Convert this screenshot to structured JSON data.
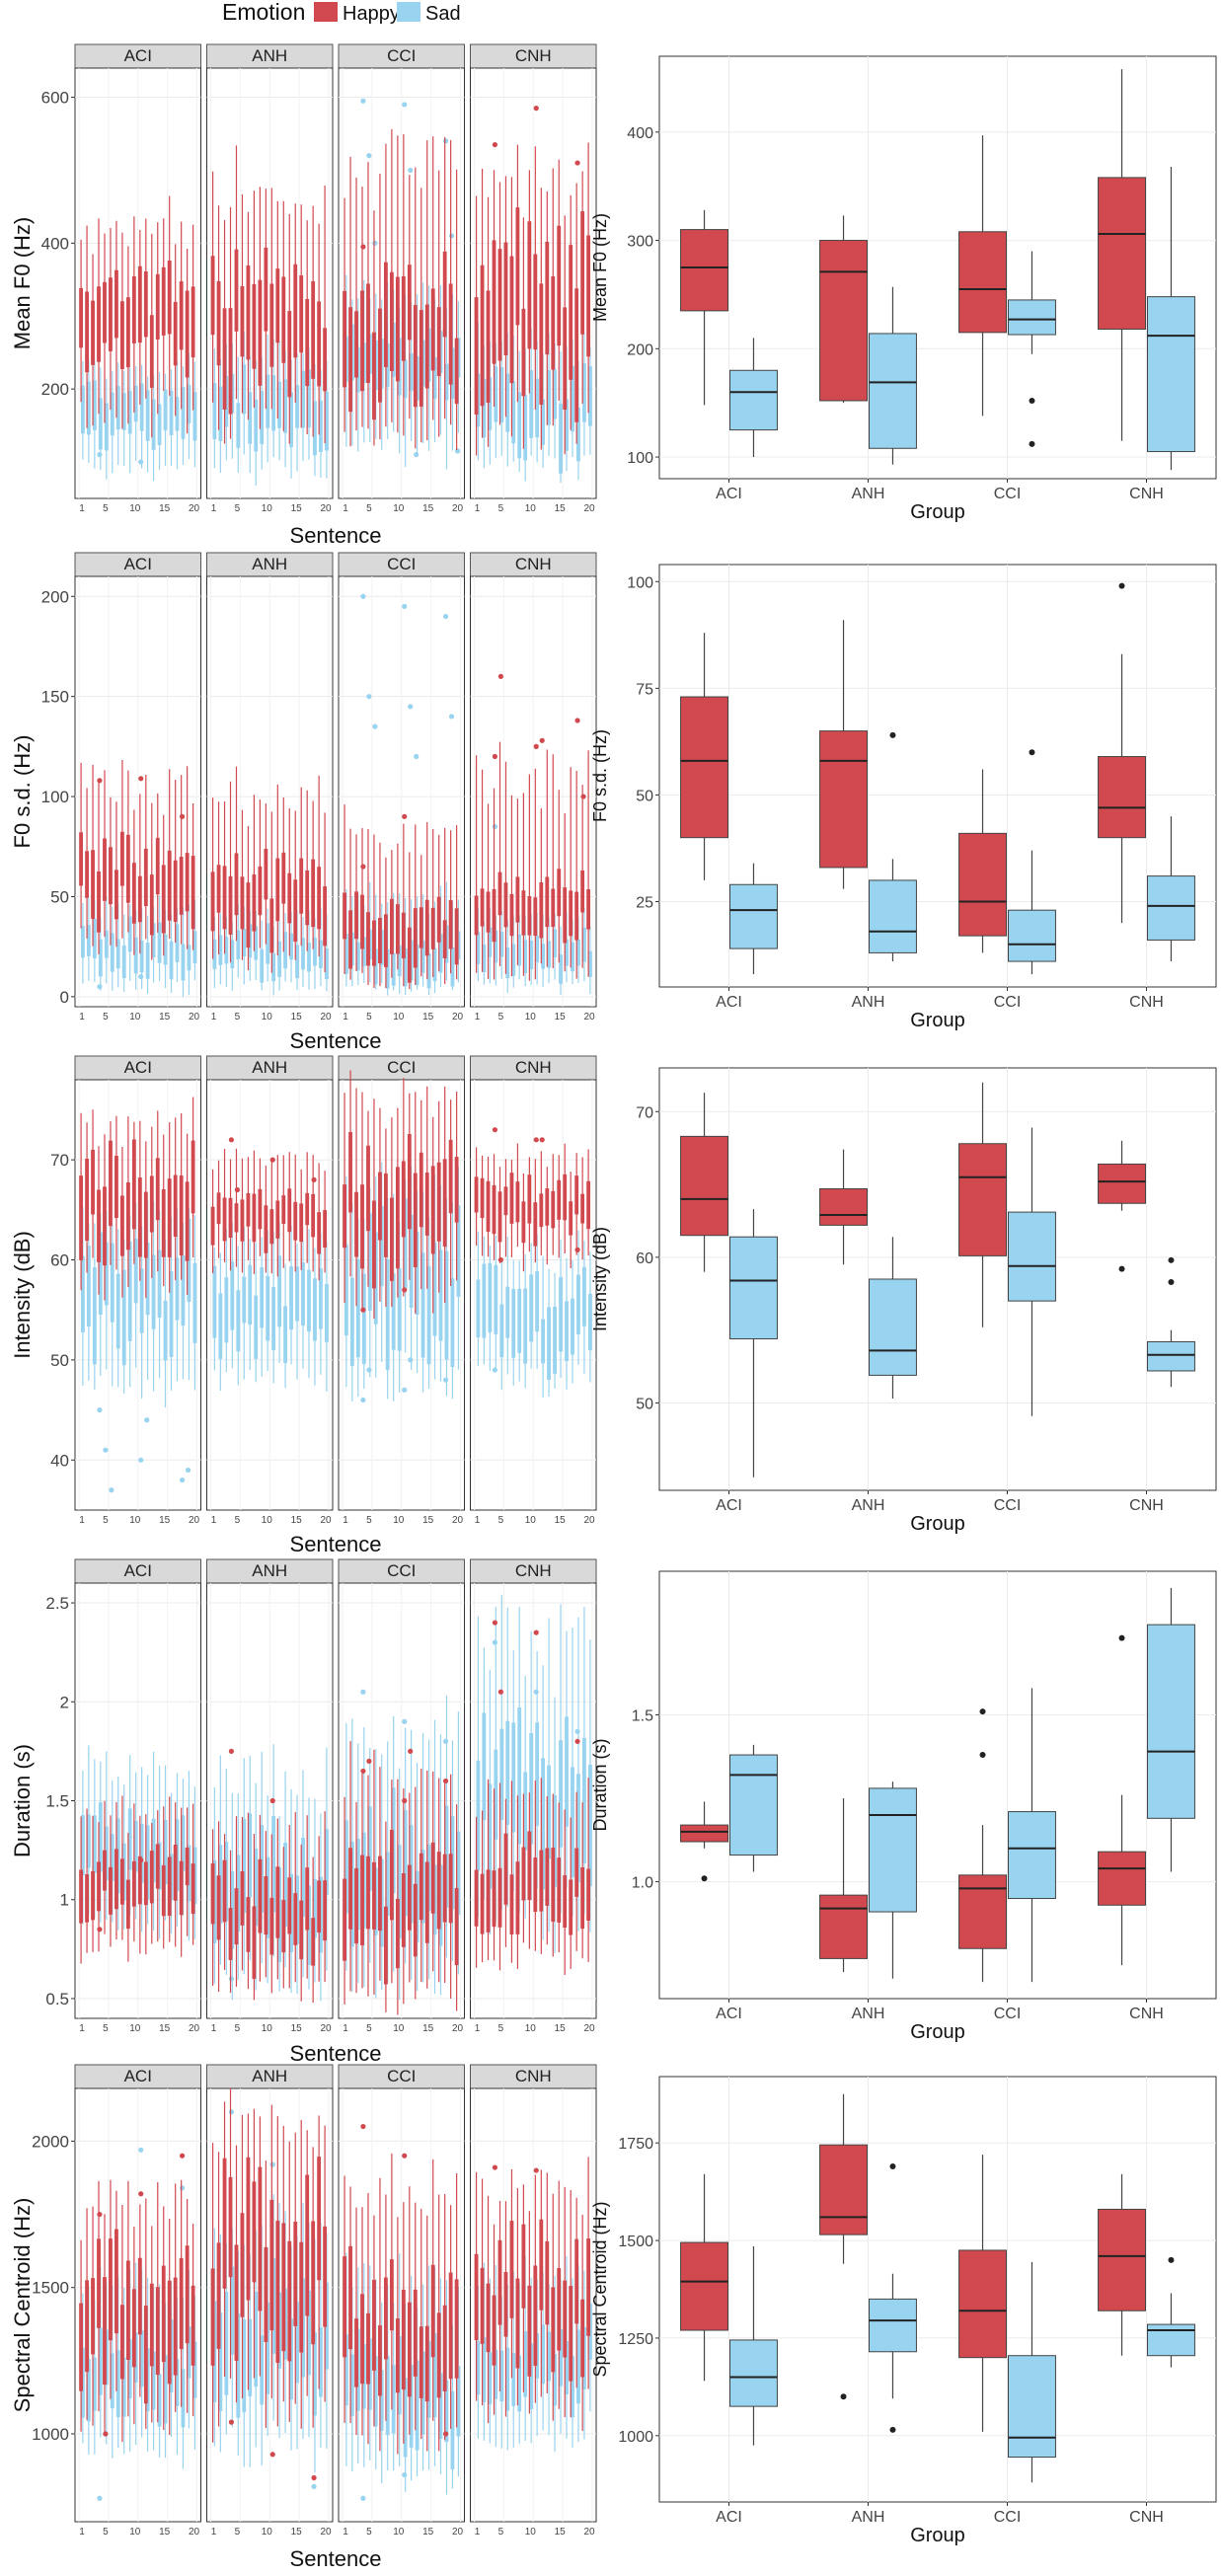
{
  "legend": {
    "title": "Emotion",
    "items": [
      {
        "label": "Happy",
        "color": "#D1494E"
      },
      {
        "label": "Sad",
        "color": "#98D3EF"
      }
    ]
  },
  "colors": {
    "happy": "#D1494E",
    "sad": "#98D3EF",
    "strip": "#D9D9D9",
    "panel_border": "#333333",
    "grid": "#EBEBEB"
  },
  "chart_data": [
    {
      "type": "boxplot-faceted",
      "row": 0,
      "ylabel": "Mean F0 (Hz)",
      "xlabel": "Sentence",
      "facets": [
        "ACI",
        "ANH",
        "CCI",
        "CNH"
      ],
      "x_ticks": [
        "1",
        "5",
        "10",
        "15",
        "20"
      ],
      "y_ticks": [
        200,
        400,
        600
      ],
      "ylim": [
        50,
        640
      ],
      "happy": {
        "ACI": [
          165,
          245,
          275,
          345,
          420
        ],
        "ANH": [
          150,
          225,
          260,
          340,
          470
        ],
        "CCI": [
          140,
          210,
          255,
          330,
          500
        ],
        "CNH": [
          160,
          230,
          290,
          390,
          500
        ]
      },
      "sad": {
        "ACI": [
          90,
          135,
          160,
          195,
          230
        ],
        "ANH": [
          90,
          130,
          165,
          205,
          250
        ],
        "CCI": [
          120,
          200,
          230,
          265,
          330
        ],
        "CNH": [
          90,
          120,
          155,
          200,
          260
        ]
      },
      "happy_outliers": {
        "ACI": [],
        "ANH": [],
        "CCI": [
          395
        ],
        "CNH": [
          535,
          585,
          510
        ]
      },
      "sad_outliers": {
        "ACI": [
          110,
          100
        ],
        "ANH": [],
        "CCI": [
          595,
          590,
          540,
          520,
          500,
          410,
          400,
          110,
          115
        ],
        "CNH": []
      }
    },
    {
      "type": "boxplot",
      "row": 0,
      "ylabel": "Mean F0 (Hz)",
      "xlabel": "Group",
      "categories": [
        "ACI",
        "ANH",
        "CCI",
        "CNH"
      ],
      "y_ticks": [
        100,
        200,
        300,
        400
      ],
      "ylim": [
        80,
        470
      ],
      "series": [
        {
          "name": "Happy",
          "boxes": [
            [
              148,
              235,
              275,
              310,
              328
            ],
            [
              150,
              152,
              271,
              300,
              323
            ],
            [
              138,
              215,
              255,
              308,
              397
            ],
            [
              115,
              218,
              306,
              358,
              458
            ]
          ],
          "outliers": [
            [],
            [],
            [],
            []
          ]
        },
        {
          "name": "Sad",
          "boxes": [
            [
              100,
              125,
              160,
              180,
              210
            ],
            [
              93,
              108,
              169,
              214,
              257
            ],
            [
              195,
              213,
              227,
              245,
              290
            ],
            [
              88,
              105,
              212,
              248,
              368
            ]
          ],
          "outliers": [
            [],
            [],
            [
              152,
              112
            ],
            []
          ]
        }
      ]
    },
    {
      "type": "boxplot-faceted",
      "row": 1,
      "ylabel": "F0 s.d. (Hz)",
      "xlabel": "Sentence",
      "facets": [
        "ACI",
        "ANH",
        "CCI",
        "CNH"
      ],
      "x_ticks": [
        "1",
        "5",
        "10",
        "15",
        "20"
      ],
      "y_ticks": [
        0,
        50,
        100,
        150,
        200
      ],
      "ylim": [
        -5,
        210
      ],
      "happy": {
        "ACI": [
          25,
          40,
          55,
          70,
          105
        ],
        "ANH": [
          20,
          35,
          50,
          62,
          100
        ],
        "CCI": [
          8,
          18,
          28,
          42,
          80
        ],
        "CNH": [
          15,
          35,
          45,
          58,
          110
        ]
      },
      "sad": {
        "ACI": [
          5,
          15,
          25,
          32,
          45
        ],
        "ANH": [
          5,
          14,
          22,
          30,
          42
        ],
        "CCI": [
          5,
          12,
          20,
          28,
          50
        ],
        "CNH": [
          5,
          14,
          20,
          28,
          40
        ]
      },
      "happy_outliers": {
        "ACI": [
          108,
          109,
          90
        ],
        "ANH": [],
        "CCI": [
          65,
          90
        ],
        "CNH": [
          120,
          125,
          138,
          160,
          128,
          100
        ]
      },
      "sad_outliers": {
        "ACI": [
          5,
          10
        ],
        "ANH": [],
        "CCI": [
          200,
          195,
          190,
          150,
          145,
          140,
          135,
          120
        ],
        "CNH": [
          85
        ]
      }
    },
    {
      "type": "boxplot",
      "row": 1,
      "ylabel": "F0 s.d. (Hz)",
      "xlabel": "Group",
      "categories": [
        "ACI",
        "ANH",
        "CCI",
        "CNH"
      ],
      "y_ticks": [
        25,
        50,
        75,
        100
      ],
      "ylim": [
        5,
        104
      ],
      "series": [
        {
          "name": "Happy",
          "boxes": [
            [
              30,
              40,
              58,
              73,
              88
            ],
            [
              28,
              33,
              58,
              65,
              91
            ],
            [
              13,
              17,
              25,
              41,
              56
            ],
            [
              20,
              40,
              47,
              59,
              83
            ]
          ],
          "outliers": [
            [],
            [],
            [],
            [
              99
            ]
          ]
        },
        {
          "name": "Sad",
          "boxes": [
            [
              8,
              14,
              23,
              29,
              34
            ],
            [
              11,
              13,
              18,
              30,
              35
            ],
            [
              8,
              11,
              15,
              23,
              37
            ],
            [
              11,
              16,
              24,
              31,
              45
            ]
          ],
          "outliers": [
            [],
            [
              64
            ],
            [
              60
            ],
            []
          ]
        }
      ]
    },
    {
      "type": "boxplot-faceted",
      "row": 2,
      "ylabel": "Intensity (dB)",
      "xlabel": "Sentence",
      "facets": [
        "ACI",
        "ANH",
        "CCI",
        "CNH"
      ],
      "x_ticks": [
        "1",
        "5",
        "10",
        "15",
        "20"
      ],
      "y_ticks": [
        40,
        50,
        60,
        70
      ],
      "ylim": [
        35,
        78
      ],
      "happy": {
        "ACI": [
          58,
          62,
          66,
          69,
          74
        ],
        "ANH": [
          59,
          62,
          64,
          66,
          70
        ],
        "CCI": [
          56,
          61,
          65,
          69,
          76
        ],
        "CNH": [
          60,
          63,
          65,
          67,
          70
        ]
      },
      "sad": {
        "ACI": [
          47,
          52,
          56,
          60,
          64
        ],
        "ANH": [
          48,
          52,
          55,
          58,
          62
        ],
        "CCI": [
          48,
          53,
          58,
          62,
          67
        ],
        "CNH": [
          48,
          51,
          54,
          57,
          61
        ]
      },
      "happy_outliers": {
        "ACI": [],
        "ANH": [
          72,
          70,
          68,
          67
        ],
        "CCI": [
          55,
          57
        ],
        "CNH": [
          73,
          72,
          61,
          60,
          72
        ]
      },
      "sad_outliers": {
        "ACI": [
          45,
          40,
          38,
          41,
          44,
          39,
          37
        ],
        "ANH": [],
        "CCI": [
          46,
          47,
          48,
          49,
          50
        ],
        "CNH": [
          49
        ]
      }
    },
    {
      "type": "boxplot",
      "row": 2,
      "ylabel": "Intensity (dB)",
      "xlabel": "Group",
      "categories": [
        "ACI",
        "ANH",
        "CCI",
        "CNH"
      ],
      "y_ticks": [
        50,
        60,
        70
      ],
      "ylim": [
        44,
        73
      ],
      "series": [
        {
          "name": "Happy",
          "boxes": [
            [
              59,
              61.5,
              64,
              68.3,
              71.3
            ],
            [
              59.5,
              62.2,
              62.9,
              64.7,
              67.4
            ],
            [
              55.2,
              60.1,
              65.5,
              67.8,
              72
            ],
            [
              63.2,
              63.7,
              65.2,
              66.4,
              68
            ]
          ],
          "outliers": [
            [],
            [],
            [],
            [
              59.2
            ]
          ]
        },
        {
          "name": "Sad",
          "boxes": [
            [
              44.9,
              54.4,
              58.4,
              61.4,
              63.3
            ],
            [
              50.3,
              51.9,
              53.6,
              58.5,
              61.4
            ],
            [
              49.1,
              57,
              59.4,
              63.1,
              68.9
            ],
            [
              51.1,
              52.2,
              53.3,
              54.2,
              55
            ]
          ],
          "outliers": [
            [],
            [],
            [],
            [
              58.3,
              59.8
            ]
          ]
        }
      ]
    },
    {
      "type": "boxplot-faceted",
      "row": 3,
      "ylabel": "Duration (s)",
      "xlabel": "Sentence",
      "facets": [
        "ACI",
        "ANH",
        "CCI",
        "CNH"
      ],
      "x_ticks": [
        "1",
        "5",
        "10",
        "15",
        "20"
      ],
      "y_ticks": [
        0.5,
        1.0,
        1.5,
        2.0,
        2.5
      ],
      "ylim": [
        0.4,
        2.6
      ],
      "happy": {
        "ACI": [
          0.75,
          0.95,
          1.05,
          1.2,
          1.45
        ],
        "ANH": [
          0.55,
          0.75,
          0.9,
          1.05,
          1.35
        ],
        "CCI": [
          0.5,
          0.75,
          0.95,
          1.15,
          1.6
        ],
        "CNH": [
          0.7,
          0.9,
          1.05,
          1.2,
          1.55
        ]
      },
      "sad": {
        "ACI": [
          0.85,
          1.05,
          1.2,
          1.35,
          1.65
        ],
        "ANH": [
          0.6,
          0.85,
          1.05,
          1.25,
          1.6
        ],
        "CCI": [
          0.6,
          0.9,
          1.1,
          1.35,
          1.85
        ],
        "CNH": [
          0.9,
          1.2,
          1.45,
          1.75,
          2.3
        ]
      },
      "happy_outliers": {
        "ACI": [
          0.85,
          1.2
        ],
        "ANH": [
          1.75,
          1.5
        ],
        "CCI": [
          1.65,
          1.5,
          1.6,
          1.7,
          1.75
        ],
        "CNH": [
          2.4,
          2.35,
          1.8,
          2.05
        ]
      },
      "sad_outliers": {
        "ACI": [],
        "ANH": [
          0.6
        ],
        "CCI": [
          2.05,
          1.9,
          1.8
        ],
        "CNH": [
          2.3,
          2.05,
          1.85
        ]
      }
    },
    {
      "type": "boxplot",
      "row": 3,
      "ylabel": "Duration (s)",
      "xlabel": "Group",
      "categories": [
        "ACI",
        "ANH",
        "CCI",
        "CNH"
      ],
      "y_ticks": [
        1.0,
        1.5
      ],
      "ylim": [
        0.65,
        1.93
      ],
      "series": [
        {
          "name": "Happy",
          "boxes": [
            [
              1.1,
              1.12,
              1.15,
              1.17,
              1.24
            ],
            [
              0.73,
              0.77,
              0.92,
              0.96,
              1.25
            ],
            [
              0.7,
              0.8,
              0.98,
              1.02,
              1.17
            ],
            [
              0.75,
              0.93,
              1.04,
              1.09,
              1.26
            ]
          ],
          "outliers": [
            [
              1.01
            ],
            [],
            [
              1.38,
              1.51
            ],
            [
              1.73
            ]
          ]
        },
        {
          "name": "Sad",
          "boxes": [
            [
              1.03,
              1.08,
              1.32,
              1.38,
              1.41
            ],
            [
              0.71,
              0.91,
              1.2,
              1.28,
              1.3
            ],
            [
              0.7,
              0.95,
              1.1,
              1.21,
              1.58
            ],
            [
              1.03,
              1.19,
              1.39,
              1.77,
              1.88
            ]
          ],
          "outliers": [
            [],
            [],
            [],
            []
          ]
        }
      ]
    },
    {
      "type": "boxplot-faceted",
      "row": 4,
      "ylabel": "Spectral Centroid (Hz)",
      "xlabel": "Sentence",
      "facets": [
        "ACI",
        "ANH",
        "CCI",
        "CNH"
      ],
      "x_ticks": [
        "1",
        "5",
        "10",
        "15",
        "20"
      ],
      "y_ticks": [
        1000,
        1500,
        2000
      ],
      "ylim": [
        700,
        2180
      ],
      "happy": {
        "ACI": [
          1050,
          1250,
          1400,
          1550,
          1800
        ],
        "ANH": [
          1100,
          1350,
          1550,
          1750,
          2050
        ],
        "CCI": [
          1000,
          1200,
          1350,
          1500,
          1850
        ],
        "CNH": [
          1100,
          1300,
          1450,
          1600,
          1850
        ]
      },
      "sad": {
        "ACI": [
          950,
          1100,
          1200,
          1300,
          1500
        ],
        "ANH": [
          950,
          1150,
          1300,
          1450,
          1700
        ],
        "CCI": [
          850,
          1000,
          1100,
          1250,
          1500
        ],
        "CNH": [
          1000,
          1150,
          1250,
          1350,
          1550
        ]
      },
      "happy_outliers": {
        "ACI": [
          1750,
          1820,
          1950,
          1000
        ],
        "ANH": [
          1040,
          930,
          850
        ],
        "CCI": [
          2050,
          1950,
          1000
        ],
        "CNH": [
          1910,
          1900
        ]
      },
      "sad_outliers": {
        "ACI": [
          780,
          1970,
          1840,
          1000
        ],
        "ANH": [
          2100,
          1920,
          820
        ],
        "CCI": [
          780,
          860
        ],
        "CNH": []
      }
    },
    {
      "type": "boxplot",
      "row": 4,
      "ylabel": "Spectral Centroid (Hz)",
      "xlabel": "Group",
      "categories": [
        "ACI",
        "ANH",
        "CCI",
        "CNH"
      ],
      "y_ticks": [
        1000,
        1250,
        1500,
        1750
      ],
      "ylim": [
        830,
        1920
      ],
      "series": [
        {
          "name": "Happy",
          "boxes": [
            [
              1140,
              1270,
              1395,
              1495,
              1670
            ],
            [
              1440,
              1515,
              1560,
              1745,
              1875
            ],
            [
              1010,
              1200,
              1320,
              1475,
              1720
            ],
            [
              1205,
              1320,
              1460,
              1580,
              1670
            ]
          ],
          "outliers": [
            [],
            [
              1100
            ],
            [],
            []
          ]
        },
        {
          "name": "Sad",
          "boxes": [
            [
              975,
              1075,
              1150,
              1245,
              1485
            ],
            [
              1095,
              1215,
              1295,
              1350,
              1415
            ],
            [
              880,
              945,
              995,
              1205,
              1445
            ],
            [
              1175,
              1205,
              1270,
              1285,
              1365
            ]
          ],
          "outliers": [
            [],
            [
              1015,
              1690
            ],
            [],
            [
              1450
            ]
          ]
        }
      ]
    }
  ]
}
